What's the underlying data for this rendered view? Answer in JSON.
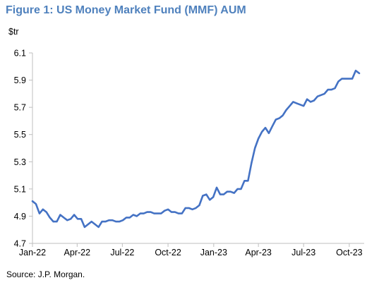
{
  "title": "Figure 1: US Money Market Fund (MMF) AUM",
  "unit": "$tr",
  "source": "Source: J.P. Morgan.",
  "colors": {
    "title": "#4f81bd",
    "line": "#4472c4",
    "axis": "#bfbfbf"
  },
  "chart_data": {
    "type": "line",
    "title": "Figure 1: US Money Market Fund (MMF) AUM",
    "ylabel": "$tr",
    "xlabel": "",
    "ylim": [
      4.7,
      6.1
    ],
    "yticks": [
      4.7,
      4.9,
      5.1,
      5.3,
      5.5,
      5.7,
      5.9,
      6.1
    ],
    "ytick_labels": [
      "4.7",
      "4.9",
      "5.1",
      "5.3",
      "5.5",
      "5.7",
      "5.9",
      "6.1"
    ],
    "xlim": [
      "2022-01-01",
      "2023-10-31"
    ],
    "xticks": [
      "2022-01-01",
      "2022-04-01",
      "2022-07-01",
      "2022-10-01",
      "2023-01-01",
      "2023-04-01",
      "2023-07-01",
      "2023-10-01"
    ],
    "xtick_labels": [
      "Jan-22",
      "Apr-22",
      "Jul-22",
      "Oct-22",
      "Jan-23",
      "Apr-23",
      "Jul-23",
      "Oct-23"
    ],
    "grid": false,
    "legend": "none",
    "series": [
      {
        "x": [
          "2022-01-01",
          "2022-01-08",
          "2022-01-15",
          "2022-01-22",
          "2022-01-29",
          "2022-02-05",
          "2022-02-12",
          "2022-02-19",
          "2022-02-26",
          "2022-03-05",
          "2022-03-12",
          "2022-03-19",
          "2022-03-26",
          "2022-04-02",
          "2022-04-09",
          "2022-04-16",
          "2022-04-23",
          "2022-04-30",
          "2022-05-07",
          "2022-05-14",
          "2022-05-21",
          "2022-05-28",
          "2022-06-04",
          "2022-06-11",
          "2022-06-18",
          "2022-06-25",
          "2022-07-02",
          "2022-07-09",
          "2022-07-16",
          "2022-07-23",
          "2022-07-30",
          "2022-08-06",
          "2022-08-13",
          "2022-08-20",
          "2022-08-27",
          "2022-09-03",
          "2022-09-10",
          "2022-09-17",
          "2022-09-24",
          "2022-10-01",
          "2022-10-08",
          "2022-10-15",
          "2022-10-22",
          "2022-10-29",
          "2022-11-05",
          "2022-11-12",
          "2022-11-19",
          "2022-11-26",
          "2022-12-03",
          "2022-12-10",
          "2022-12-17",
          "2022-12-24",
          "2022-12-31",
          "2023-01-07",
          "2023-01-14",
          "2023-01-21",
          "2023-01-28",
          "2023-02-04",
          "2023-02-11",
          "2023-02-18",
          "2023-02-25",
          "2023-03-04",
          "2023-03-11",
          "2023-03-18",
          "2023-03-25",
          "2023-04-01",
          "2023-04-08",
          "2023-04-15",
          "2023-04-22",
          "2023-04-29",
          "2023-05-06",
          "2023-05-13",
          "2023-05-20",
          "2023-05-27",
          "2023-06-03",
          "2023-06-10",
          "2023-06-17",
          "2023-06-24",
          "2023-07-01",
          "2023-07-08",
          "2023-07-15",
          "2023-07-22",
          "2023-07-29",
          "2023-08-05",
          "2023-08-12",
          "2023-08-19",
          "2023-08-26",
          "2023-09-02",
          "2023-09-09",
          "2023-09-16",
          "2023-09-23",
          "2023-09-30",
          "2023-10-07",
          "2023-10-14",
          "2023-10-21"
        ],
        "values": [
          5.01,
          4.99,
          4.92,
          4.95,
          4.93,
          4.89,
          4.86,
          4.86,
          4.91,
          4.89,
          4.87,
          4.88,
          4.91,
          4.88,
          4.88,
          4.82,
          4.84,
          4.86,
          4.84,
          4.82,
          4.86,
          4.86,
          4.87,
          4.87,
          4.86,
          4.86,
          4.87,
          4.89,
          4.89,
          4.91,
          4.9,
          4.92,
          4.92,
          4.93,
          4.93,
          4.92,
          4.92,
          4.92,
          4.94,
          4.95,
          4.93,
          4.93,
          4.92,
          4.92,
          4.96,
          4.96,
          4.95,
          4.96,
          4.98,
          5.05,
          5.06,
          5.02,
          5.04,
          5.11,
          5.06,
          5.06,
          5.08,
          5.08,
          5.07,
          5.1,
          5.1,
          5.16,
          5.16,
          5.29,
          5.4,
          5.47,
          5.52,
          5.55,
          5.51,
          5.56,
          5.61,
          5.62,
          5.64,
          5.68,
          5.71,
          5.74,
          5.73,
          5.72,
          5.71,
          5.76,
          5.74,
          5.75,
          5.78,
          5.79,
          5.8,
          5.83,
          5.83,
          5.84,
          5.89,
          5.91,
          5.91,
          5.91,
          5.91,
          5.97,
          5.95
        ]
      }
    ]
  }
}
